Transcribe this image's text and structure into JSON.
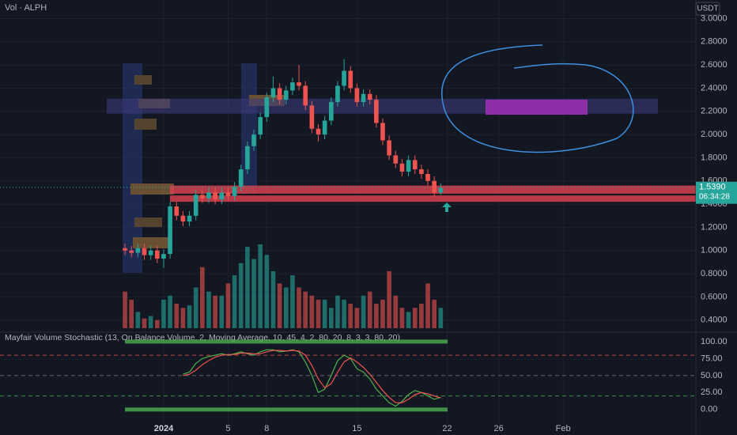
{
  "chart_data": {
    "type": "candlestick",
    "title": "Vol · ALPH",
    "currency": "USDT",
    "indicator_title": "Mayfair Volume Stochastic (13, On Balance Volume, 2, Moving Average, 10, 45, 4, 2, 80, 20, 8, 3, 3, 80, 20)",
    "countdown": "06:34:28",
    "x": [
      -3,
      -2.5,
      -2,
      -1.5,
      -1,
      -0.5,
      0,
      0.5,
      1,
      1.5,
      2,
      2.5,
      3,
      3.5,
      4,
      4.5,
      5,
      5.5,
      6,
      6.5,
      7,
      7.5,
      8,
      8.5,
      9,
      9.5,
      10,
      10.5,
      11,
      11.5,
      12,
      12.5,
      13,
      13.5,
      14,
      14.5,
      15,
      15.5,
      16,
      16.5,
      17,
      17.5,
      18,
      18.5,
      19,
      19.5,
      20,
      20.5,
      21,
      21.5
    ],
    "open": [
      1.02,
      1.0,
      0.98,
      1.02,
      0.96,
      1.0,
      0.93,
      0.97,
      1.38,
      1.3,
      1.25,
      1.3,
      1.48,
      1.45,
      1.5,
      1.44,
      1.5,
      1.47,
      1.55,
      1.7,
      1.9,
      2.0,
      2.15,
      2.32,
      2.4,
      2.3,
      2.38,
      2.45,
      2.42,
      2.25,
      2.05,
      2.0,
      2.12,
      2.28,
      2.42,
      2.55,
      2.4,
      2.28,
      2.35,
      2.3,
      2.1,
      1.95,
      1.82,
      1.75,
      1.68,
      1.78,
      1.7,
      1.66,
      1.6,
      1.5
    ],
    "high": [
      1.06,
      1.04,
      1.06,
      1.06,
      1.04,
      1.04,
      1.01,
      1.42,
      1.42,
      1.34,
      1.34,
      1.52,
      1.52,
      1.54,
      1.54,
      1.54,
      1.54,
      1.59,
      1.74,
      1.94,
      2.04,
      2.19,
      2.36,
      2.5,
      2.44,
      2.42,
      2.49,
      2.6,
      2.46,
      2.29,
      2.09,
      2.16,
      2.32,
      2.46,
      2.65,
      2.59,
      2.44,
      2.39,
      2.39,
      2.34,
      2.14,
      1.99,
      1.86,
      1.79,
      1.82,
      1.82,
      1.74,
      1.7,
      1.64,
      1.58
    ],
    "low": [
      0.96,
      0.94,
      0.94,
      0.92,
      0.92,
      0.89,
      0.85,
      0.93,
      1.26,
      1.21,
      1.21,
      1.26,
      1.41,
      1.41,
      1.4,
      1.4,
      1.43,
      1.43,
      1.51,
      1.66,
      1.86,
      1.96,
      2.11,
      2.28,
      2.26,
      2.26,
      2.34,
      2.38,
      2.21,
      2.01,
      1.94,
      1.96,
      2.08,
      2.24,
      2.38,
      2.36,
      2.24,
      2.24,
      2.26,
      2.06,
      1.91,
      1.78,
      1.71,
      1.64,
      1.64,
      1.66,
      1.62,
      1.56,
      1.46,
      1.48
    ],
    "close": [
      1.0,
      0.98,
      1.02,
      0.96,
      1.0,
      0.93,
      0.97,
      1.38,
      1.3,
      1.25,
      1.3,
      1.48,
      1.45,
      1.5,
      1.44,
      1.5,
      1.47,
      1.55,
      1.7,
      1.9,
      2.0,
      2.15,
      2.32,
      2.4,
      2.3,
      2.38,
      2.45,
      2.42,
      2.25,
      2.05,
      2.0,
      2.12,
      2.28,
      2.42,
      2.55,
      2.4,
      2.28,
      2.35,
      2.3,
      2.1,
      1.95,
      1.82,
      1.75,
      1.68,
      1.78,
      1.7,
      1.66,
      1.6,
      1.5,
      1.539
    ],
    "last_value_label": "1.5390",
    "volume": [
      45,
      35,
      20,
      12,
      15,
      10,
      35,
      40,
      30,
      25,
      28,
      50,
      75,
      45,
      40,
      40,
      55,
      65,
      80,
      100,
      85,
      103,
      90,
      70,
      55,
      50,
      65,
      50,
      45,
      40,
      35,
      35,
      25,
      40,
      35,
      30,
      25,
      40,
      45,
      30,
      35,
      70,
      40,
      25,
      20,
      25,
      30,
      55,
      35,
      25
    ],
    "volume_lim": [
      0,
      100
    ],
    "up_color": "#26a69a",
    "down_color": "#ef5350",
    "xlim": [
      -12.7,
      41.3
    ],
    "xticks": [
      {
        "value": 0,
        "label": "2024"
      },
      8,
      15,
      22,
      26,
      {
        "value": 31,
        "label": "Feb"
      },
      5
    ],
    "ylim": [
      0.33,
      3.16
    ],
    "yticks": [
      {
        "value": 3,
        "label": "3.0000"
      },
      {
        "value": 2.8,
        "label": "2.8000"
      },
      {
        "value": 2.6,
        "label": "2.6000"
      },
      {
        "value": 2.4,
        "label": "2.4000"
      },
      {
        "value": 2.2,
        "label": "2.2000"
      },
      {
        "value": 2,
        "label": "2.0000"
      },
      {
        "value": 1.8,
        "label": "1.8000"
      },
      {
        "value": 1.6,
        "label": "1.6000"
      },
      {
        "value": 1.4,
        "label": "1.4000"
      },
      {
        "value": 1.2,
        "label": "1.2000"
      },
      {
        "value": 1,
        "label": "1.0000"
      },
      {
        "value": 0.8,
        "label": "0.8000"
      },
      {
        "value": 0.6,
        "label": "0.6000"
      },
      {
        "value": 0.4,
        "label": "0.4000"
      }
    ],
    "zones": [
      {
        "low": 2.18,
        "high": 2.31,
        "color": "#3a3a78"
      },
      {
        "low": 1.49,
        "high": 1.56,
        "color": "#d6414d"
      },
      {
        "low": 1.42,
        "high": 1.475,
        "color": "#d6414d"
      }
    ],
    "oscillator": {
      "ylim": [
        -20,
        108
      ],
      "yticks": [
        {
          "value": 100,
          "label": "100.00"
        },
        {
          "value": 75,
          "label": "75.00"
        },
        {
          "value": 50,
          "label": "50.00"
        },
        {
          "value": 25,
          "label": "25.00"
        },
        {
          "value": 0,
          "label": "0.00"
        }
      ],
      "levels": [
        {
          "value": 80,
          "color": "#ef5350"
        },
        {
          "value": 50,
          "color": "#787b86"
        },
        {
          "value": 20,
          "color": "#4caf50"
        }
      ],
      "series": [
        {
          "color": "#4caf50",
          "values": [
            null,
            null,
            null,
            null,
            null,
            null,
            null,
            null,
            null,
            52,
            55,
            68,
            75,
            78,
            80,
            82,
            80,
            82,
            85,
            82,
            80,
            85,
            88,
            88,
            85,
            86,
            88,
            85,
            70,
            50,
            25,
            30,
            50,
            72,
            80,
            75,
            60,
            55,
            45,
            30,
            20,
            10,
            5,
            12,
            22,
            28,
            25,
            20,
            15,
            18
          ]
        },
        {
          "color": "#ef5350",
          "values": [
            null,
            null,
            null,
            null,
            null,
            null,
            null,
            null,
            null,
            50,
            52,
            58,
            66,
            72,
            77,
            80,
            81,
            81,
            83,
            83,
            82,
            82,
            85,
            87,
            87,
            86,
            87,
            86,
            80,
            65,
            45,
            32,
            38,
            55,
            70,
            76,
            70,
            62,
            52,
            40,
            28,
            18,
            10,
            10,
            15,
            22,
            25,
            23,
            20,
            17
          ]
        }
      ]
    }
  }
}
